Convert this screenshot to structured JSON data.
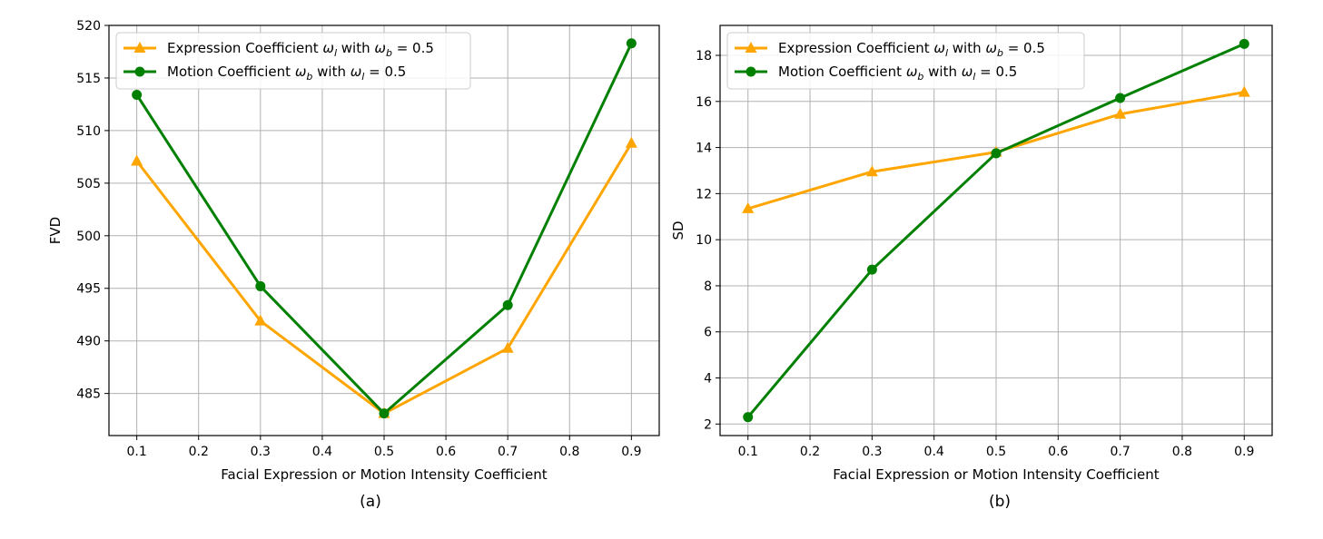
{
  "colors": {
    "expression": "#FFA500",
    "motion": "#008000",
    "grid": "#b0b0b0"
  },
  "chart_data": [
    {
      "type": "line",
      "caption": "(a)",
      "xlabel": "Facial Expression or Motion Intensity Coefficient",
      "ylabel": "FVD",
      "xlim": [
        0.055,
        0.945
      ],
      "ylim": [
        481,
        520
      ],
      "xticks": [
        0.1,
        0.2,
        0.3,
        0.4,
        0.5,
        0.6,
        0.7,
        0.8,
        0.9
      ],
      "xtick_labels": [
        "0.1",
        "0.2",
        "0.3",
        "0.4",
        "0.5",
        "0.6",
        "0.7",
        "0.8",
        "0.9"
      ],
      "yticks": [
        485,
        490,
        495,
        500,
        505,
        510,
        515,
        520
      ],
      "ytick_labels": [
        "485",
        "490",
        "495",
        "500",
        "505",
        "510",
        "515",
        "520"
      ],
      "grid": true,
      "legend_position": "upper-left",
      "series": [
        {
          "name_prefix": "Expression Coefficient ",
          "name_var": "ω",
          "name_var_sub": "l",
          "name_mid": " with ",
          "name_cond": "ω",
          "name_cond_sub": "b",
          "name_val": " = 0.5",
          "marker": "triangle",
          "color_key": "expression",
          "x": [
            0.1,
            0.3,
            0.5,
            0.7,
            0.9
          ],
          "y": [
            507.1,
            491.9,
            483.1,
            489.3,
            508.8
          ]
        },
        {
          "name_prefix": "Motion Coefficient ",
          "name_var": "ω",
          "name_var_sub": "b",
          "name_mid": " with ",
          "name_cond": "ω",
          "name_cond_sub": "l",
          "name_val": " = 0.5",
          "marker": "circle",
          "color_key": "motion",
          "x": [
            0.1,
            0.3,
            0.5,
            0.7,
            0.9
          ],
          "y": [
            513.4,
            495.2,
            483.1,
            493.4,
            518.3
          ]
        }
      ]
    },
    {
      "type": "line",
      "caption": "(b)",
      "xlabel": "Facial Expression or Motion Intensity Coefficient",
      "ylabel": "SD",
      "xlim": [
        0.055,
        0.945
      ],
      "ylim": [
        1.5,
        19.3
      ],
      "xticks": [
        0.1,
        0.2,
        0.3,
        0.4,
        0.5,
        0.6,
        0.7,
        0.8,
        0.9
      ],
      "xtick_labels": [
        "0.1",
        "0.2",
        "0.3",
        "0.4",
        "0.5",
        "0.6",
        "0.7",
        "0.8",
        "0.9"
      ],
      "yticks": [
        2,
        4,
        6,
        8,
        10,
        12,
        14,
        16,
        18
      ],
      "ytick_labels": [
        "2",
        "4",
        "6",
        "8",
        "10",
        "12",
        "14",
        "16",
        "18"
      ],
      "grid": true,
      "legend_position": "upper-left",
      "series": [
        {
          "name_prefix": "Expression Coefficient ",
          "name_var": "ω",
          "name_var_sub": "l",
          "name_mid": " with ",
          "name_cond": "ω",
          "name_cond_sub": "b",
          "name_val": " = 0.5",
          "marker": "triangle",
          "color_key": "expression",
          "x": [
            0.1,
            0.3,
            0.5,
            0.7,
            0.9
          ],
          "y": [
            11.35,
            12.95,
            13.8,
            15.45,
            16.4
          ]
        },
        {
          "name_prefix": "Motion Coefficient ",
          "name_var": "ω",
          "name_var_sub": "b",
          "name_mid": " with ",
          "name_cond": "ω",
          "name_cond_sub": "l",
          "name_val": " = 0.5",
          "marker": "circle",
          "color_key": "motion",
          "x": [
            0.1,
            0.3,
            0.5,
            0.7,
            0.9
          ],
          "y": [
            2.3,
            8.7,
            13.75,
            16.15,
            18.5
          ]
        }
      ]
    }
  ]
}
